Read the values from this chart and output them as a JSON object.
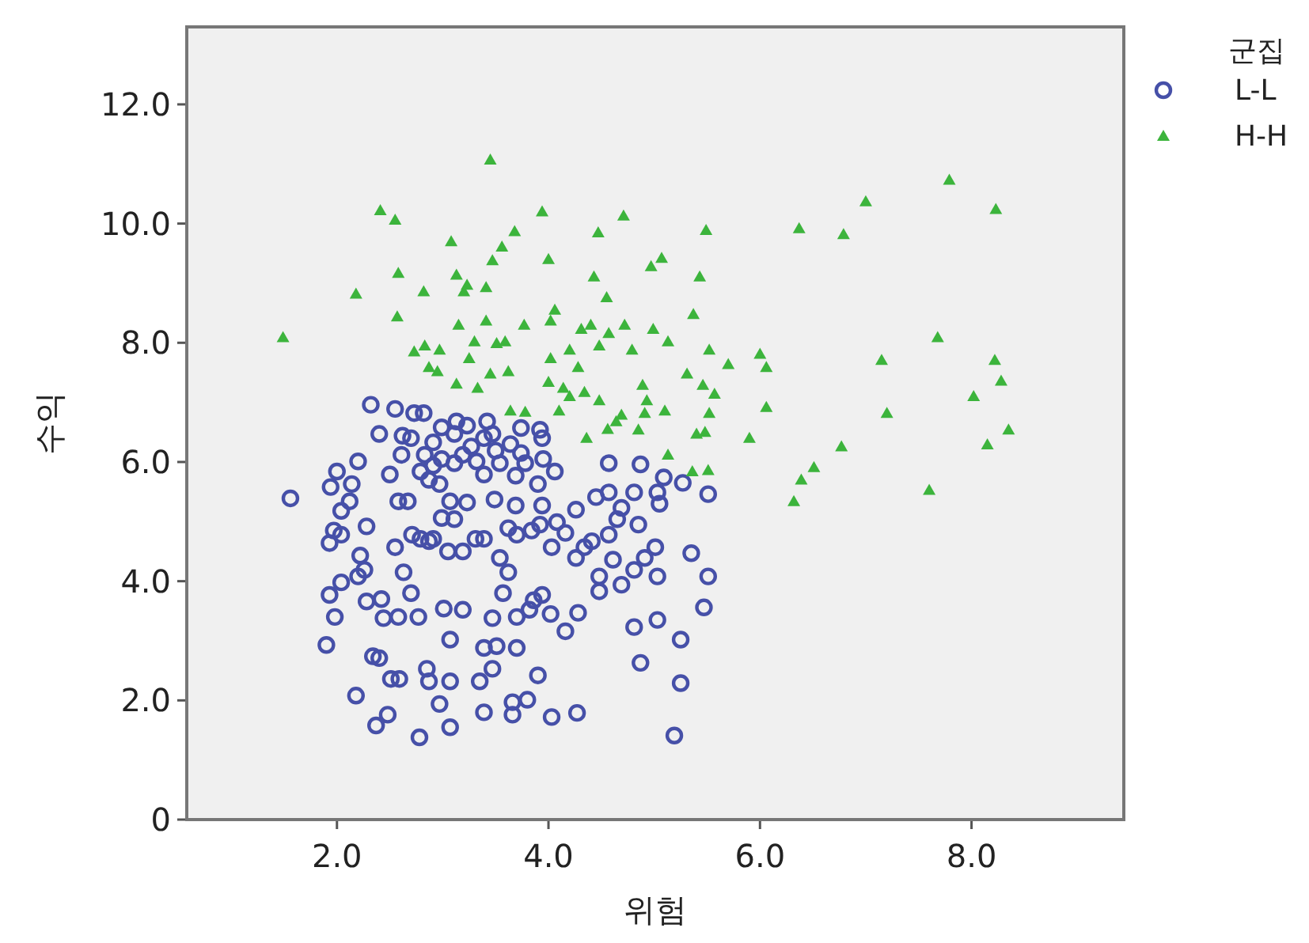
{
  "chart_data": {
    "type": "scatter",
    "xlabel": "위험",
    "ylabel": "수익",
    "legend_title": "군집",
    "legend": "right",
    "grid": false,
    "xlim": [
      0.58,
      9.44
    ],
    "ylim": [
      0,
      13.3
    ],
    "xticks": [
      {
        "value": 2,
        "label": "2.0"
      },
      {
        "value": 4,
        "label": "4.0"
      },
      {
        "value": 6,
        "label": "6.0"
      },
      {
        "value": 8,
        "label": "8.0"
      }
    ],
    "yticks": [
      0,
      {
        "value": 2,
        "label": "2.0"
      },
      {
        "value": 4,
        "label": "4.0"
      },
      {
        "value": 6,
        "label": "6.0"
      },
      {
        "value": 8,
        "label": "8.0"
      },
      {
        "value": 10,
        "label": "10.0"
      },
      {
        "value": 12,
        "label": "12.0"
      }
    ],
    "series": [
      {
        "name": "L-L",
        "color": "#4650a8",
        "marker": "circle",
        "x": [
          1.56,
          1.9,
          1.93,
          1.98,
          1.93,
          1.97,
          2.04,
          1.94,
          2.0,
          2.04,
          2.12,
          2.14,
          2.2,
          2.18,
          2.28,
          2.22,
          2.2,
          2.26,
          2.04,
          2.28,
          2.32,
          2.4,
          2.42,
          2.44,
          2.34,
          2.4,
          2.48,
          2.37,
          2.5,
          2.55,
          2.61,
          2.62,
          2.58,
          2.67,
          2.55,
          2.63,
          2.7,
          2.58,
          2.77,
          2.51,
          2.59,
          2.78,
          2.97,
          3.07,
          2.85,
          2.87,
          3.07,
          3.07,
          3.01,
          3.19,
          2.73,
          2.82,
          2.83,
          2.7,
          2.79,
          2.87,
          2.91,
          2.99,
          2.97,
          3.11,
          3.19,
          3.13,
          3.23,
          3.11,
          3.42,
          3.5,
          3.32,
          3.39,
          3.54,
          3.64,
          3.74,
          3.78,
          3.69,
          3.92,
          3.94,
          3.95,
          4.06,
          3.9,
          3.07,
          3.23,
          3.49,
          3.69,
          3.94,
          2.99,
          3.11,
          2.71,
          2.79,
          2.87,
          2.91,
          3.05,
          3.19,
          3.31,
          3.39,
          3.62,
          3.7,
          3.84,
          3.92,
          4.08,
          4.26,
          4.03,
          4.16,
          4.34,
          4.26,
          4.41,
          4.57,
          4.65,
          4.45,
          4.57,
          4.69,
          4.81,
          4.85,
          4.87,
          4.57,
          5.03,
          5.05,
          5.09,
          5.27,
          5.51,
          5.01,
          4.91,
          4.81,
          4.61,
          4.69,
          4.48,
          4.48,
          5.03,
          5.35,
          5.51,
          5.47,
          4.81,
          5.03,
          5.25,
          4.87,
          5.25,
          5.19,
          3.54,
          3.62,
          3.57,
          3.86,
          3.94,
          3.82,
          4.02,
          4.16,
          4.28,
          3.7,
          3.47,
          3.39,
          3.51,
          3.7,
          3.47,
          3.35,
          3.9,
          3.66,
          3.8,
          3.39,
          3.66,
          4.03,
          4.27,
          2.99,
          2.91,
          3.27,
          3.39,
          3.47,
          3.74
        ],
        "values": [
          5.39,
          2.93,
          3.77,
          3.4,
          4.64,
          4.85,
          4.78,
          5.58,
          5.84,
          5.18,
          5.34,
          5.63,
          6.01,
          2.08,
          4.92,
          4.43,
          4.08,
          4.19,
          3.98,
          3.66,
          6.96,
          6.47,
          3.7,
          3.38,
          2.74,
          2.71,
          1.76,
          1.58,
          5.79,
          6.89,
          6.12,
          6.44,
          5.34,
          5.34,
          4.57,
          4.15,
          3.8,
          3.4,
          3.4,
          2.36,
          2.36,
          1.38,
          1.94,
          1.55,
          2.53,
          2.32,
          2.32,
          3.02,
          3.54,
          3.52,
          6.82,
          6.82,
          6.12,
          6.4,
          5.84,
          5.7,
          5.94,
          6.05,
          5.63,
          5.98,
          6.12,
          6.68,
          6.61,
          6.47,
          6.68,
          6.19,
          6.01,
          5.79,
          5.98,
          6.3,
          6.15,
          5.98,
          5.77,
          6.54,
          6.4,
          6.05,
          5.84,
          5.63,
          5.34,
          5.32,
          5.37,
          5.27,
          5.27,
          5.06,
          5.04,
          4.78,
          4.71,
          4.67,
          4.71,
          4.5,
          4.5,
          4.71,
          4.71,
          4.89,
          4.78,
          4.85,
          4.95,
          4.99,
          5.2,
          4.57,
          4.81,
          4.57,
          4.39,
          4.67,
          4.78,
          5.04,
          5.41,
          5.49,
          5.23,
          5.49,
          4.95,
          5.96,
          5.98,
          5.49,
          5.3,
          5.74,
          5.65,
          5.46,
          4.57,
          4.39,
          4.19,
          4.36,
          3.94,
          4.08,
          3.83,
          4.08,
          4.47,
          4.08,
          3.56,
          3.23,
          3.35,
          3.02,
          2.63,
          2.29,
          1.41,
          4.39,
          4.15,
          3.8,
          3.68,
          3.77,
          3.52,
          3.45,
          3.16,
          3.47,
          3.4,
          3.38,
          2.88,
          2.91,
          2.88,
          2.53,
          2.32,
          2.42,
          1.97,
          2.01,
          1.8,
          1.76,
          1.72,
          1.79,
          6.58,
          6.33,
          6.26,
          6.4,
          6.47,
          6.57
        ]
      },
      {
        "name": "H-H",
        "color": "#3cb43c",
        "marker": "triangle",
        "x": [
          1.49,
          2.18,
          2.41,
          2.55,
          2.58,
          2.57,
          2.82,
          2.73,
          2.83,
          2.87,
          2.97,
          2.95,
          3.08,
          3.13,
          3.2,
          3.23,
          3.41,
          3.45,
          3.47,
          3.56,
          3.68,
          3.15,
          3.3,
          3.41,
          3.51,
          3.59,
          3.13,
          3.33,
          3.45,
          3.62,
          3.25,
          3.77,
          3.94,
          4.0,
          4.02,
          4.06,
          4.0,
          4.02,
          4.2,
          4.14,
          4.28,
          4.31,
          4.4,
          4.43,
          4.47,
          4.55,
          4.48,
          4.57,
          4.71,
          4.72,
          4.79,
          4.89,
          4.93,
          4.99,
          4.97,
          5.07,
          5.13,
          5.31,
          5.37,
          5.43,
          5.49,
          5.52,
          5.46,
          5.57,
          5.7,
          5.4,
          5.48,
          5.52,
          5.36,
          5.51,
          5.13,
          5.1,
          4.91,
          4.85,
          4.69,
          4.64,
          4.56,
          4.48,
          4.34,
          4.36,
          4.2,
          4.1,
          3.78,
          3.64,
          5.9,
          6.0,
          6.06,
          6.06,
          6.37,
          6.51,
          6.39,
          6.32,
          6.79,
          6.77,
          7.0,
          7.15,
          7.2,
          7.6,
          7.68,
          7.79,
          8.02,
          8.15,
          8.23,
          8.22,
          8.28,
          8.35
        ],
        "values": [
          8.09,
          8.82,
          10.22,
          10.06,
          9.17,
          8.44,
          8.86,
          7.85,
          7.95,
          7.59,
          7.88,
          7.52,
          9.7,
          9.14,
          8.86,
          8.97,
          8.93,
          11.07,
          9.38,
          9.61,
          9.87,
          8.3,
          8.02,
          8.37,
          7.99,
          8.02,
          7.31,
          7.24,
          7.48,
          7.52,
          7.74,
          8.3,
          10.2,
          9.4,
          8.37,
          8.55,
          7.34,
          7.74,
          7.88,
          7.24,
          7.59,
          8.23,
          8.3,
          9.11,
          9.85,
          8.76,
          7.95,
          8.16,
          10.13,
          8.3,
          7.88,
          7.29,
          7.03,
          8.23,
          9.28,
          9.42,
          8.02,
          7.48,
          8.48,
          9.11,
          9.89,
          7.88,
          7.29,
          7.14,
          7.64,
          6.47,
          6.5,
          6.82,
          5.84,
          5.86,
          6.12,
          6.86,
          6.82,
          6.54,
          6.79,
          6.68,
          6.55,
          7.03,
          7.17,
          6.4,
          7.1,
          6.86,
          6.84,
          6.86,
          6.4,
          7.81,
          7.59,
          6.92,
          9.92,
          5.91,
          5.7,
          5.34,
          9.82,
          6.26,
          10.37,
          7.71,
          6.82,
          5.53,
          8.09,
          10.73,
          7.1,
          6.29,
          10.24,
          7.71,
          7.36,
          6.54
        ]
      }
    ]
  }
}
